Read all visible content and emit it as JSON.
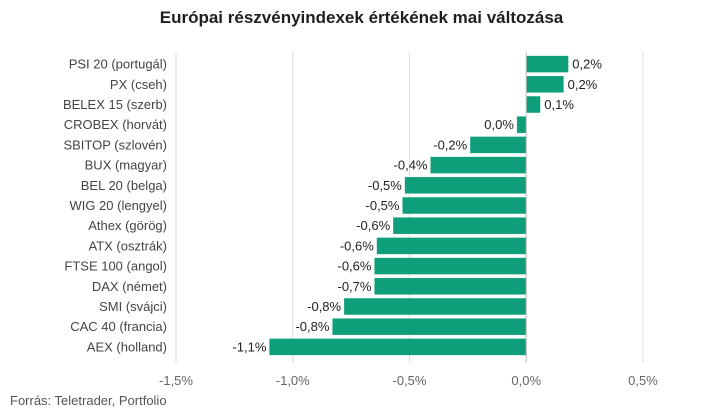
{
  "source": "Forrás: Teletrader, Portfolio",
  "chart_data": {
    "type": "bar",
    "orientation": "horizontal",
    "title": "Európai részvényindexek értékének mai változása",
    "categories": [
      "PSI 20 (portugál)",
      "PX (cseh)",
      "BELEX 15 (szerb)",
      "CROBEX (horvát)",
      "SBITOP (szlovén)",
      "BUX (magyar)",
      "BEL 20 (belga)",
      "WIG 20 (lengyel)",
      "Athex (görög)",
      "ATX (osztrák)",
      "FTSE 100 (angol)",
      "DAX (német)",
      "SMI (svájci)",
      "CAC 40 (francia)",
      "AEX (holland)"
    ],
    "values": [
      0.18,
      0.16,
      0.06,
      -0.04,
      -0.24,
      -0.41,
      -0.52,
      -0.53,
      -0.57,
      -0.64,
      -0.65,
      -0.65,
      -0.78,
      -0.83,
      -1.1
    ],
    "data_labels": [
      "0,2%",
      "0,2%",
      "0,1%",
      "0,0%",
      "-0,2%",
      "-0,4%",
      "-0,5%",
      "-0,5%",
      "-0,6%",
      "-0,6%",
      "-0,6%",
      "-0,7%",
      "-0,8%",
      "-0,8%",
      "-1,1%"
    ],
    "xlim": [
      -1.5,
      0.5
    ],
    "xticks": [
      -1.5,
      -1.0,
      -0.5,
      0.0,
      0.5
    ],
    "xtick_labels": [
      "-1,5%",
      "-1,0%",
      "-0,5%",
      "0,0%",
      "0,5%"
    ],
    "bar_color": "#0e9f7a",
    "gridlines": true,
    "legend": "none"
  }
}
